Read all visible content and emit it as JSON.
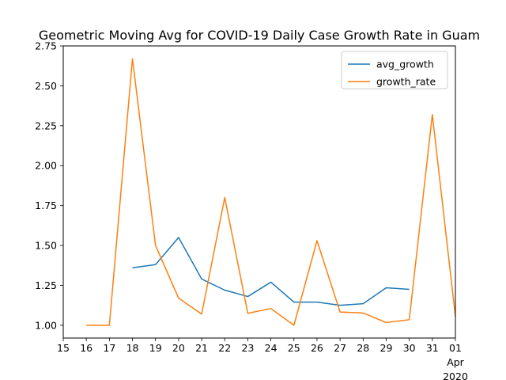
{
  "chart_data": {
    "type": "line",
    "title": "Geometric Moving Avg for COVID-19 Daily Case Growth Rate in Guam",
    "xlabel": "",
    "ylabel": "",
    "x_ticks": [
      "15",
      "16",
      "17",
      "18",
      "19",
      "20",
      "21",
      "22",
      "23",
      "24",
      "25",
      "26",
      "27",
      "28",
      "29",
      "30",
      "31",
      "01"
    ],
    "x_tick_sublabels": [
      "Apr",
      "2020"
    ],
    "x": [
      "2020-03-16",
      "2020-03-17",
      "2020-03-18",
      "2020-03-19",
      "2020-03-20",
      "2020-03-21",
      "2020-03-22",
      "2020-03-23",
      "2020-03-24",
      "2020-03-25",
      "2020-03-26",
      "2020-03-27",
      "2020-03-28",
      "2020-03-29",
      "2020-03-30",
      "2020-03-31",
      "2020-04-01"
    ],
    "xlim": [
      "2020-03-15",
      "2020-04-01"
    ],
    "ylim": [
      0.92,
      2.75
    ],
    "y_ticks": [
      "1.00",
      "1.25",
      "1.50",
      "1.75",
      "2.00",
      "2.25",
      "2.50",
      "2.75"
    ],
    "grid": false,
    "legend_position": "top-right",
    "series": [
      {
        "name": "avg_growth",
        "color": "#1f77b4",
        "values": [
          null,
          null,
          1.36,
          1.38,
          1.55,
          1.29,
          1.22,
          1.18,
          1.27,
          1.145,
          1.145,
          1.125,
          1.135,
          1.235,
          1.225,
          null,
          null
        ]
      },
      {
        "name": "growth_rate",
        "color": "#ff7f0e",
        "values": [
          1.0,
          1.0,
          2.67,
          1.5,
          1.17,
          1.07,
          1.8,
          1.075,
          1.105,
          1.0,
          1.53,
          1.083,
          1.077,
          1.017,
          1.035,
          2.32,
          1.055
        ]
      }
    ]
  }
}
